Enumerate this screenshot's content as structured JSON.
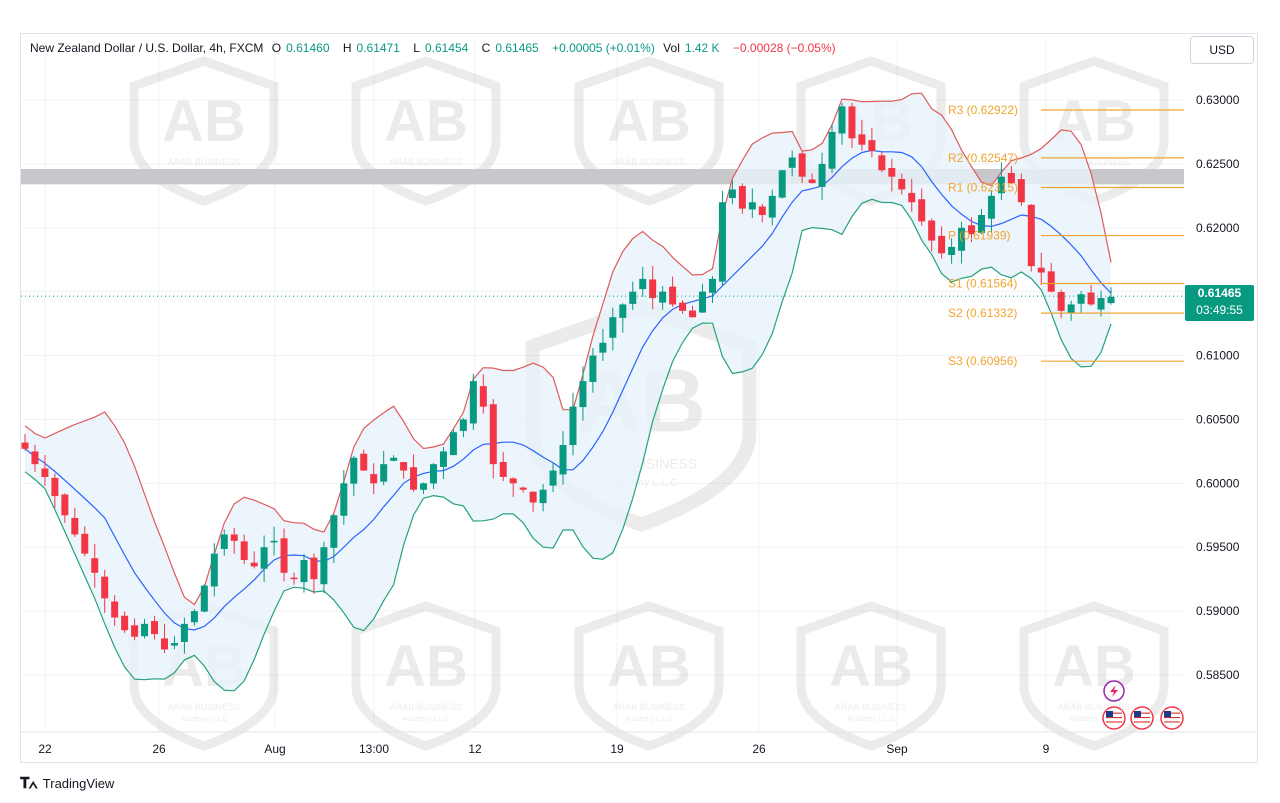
{
  "header": {
    "symbol": "New Zealand Dollar / U.S. Dollar, 4h, FXCM",
    "open_label": "O",
    "open": "0.61460",
    "high_label": "H",
    "high": "0.61471",
    "low_label": "L",
    "low": "0.61454",
    "close_label": "C",
    "close": "0.61465",
    "change": "+0.00005 (+0.01%)",
    "vol_label": "Vol",
    "vol": "1.42 K",
    "vol_change": "−0.00028 (−0.05%)"
  },
  "currency_button": "USD",
  "last_price": {
    "price": "0.61465",
    "countdown": "03:49:55"
  },
  "footer": {
    "brand": "TradingView"
  },
  "watermark": {
    "line1": "ARAB BUSINESS",
    "line2": "Academy L.L.C"
  },
  "colors": {
    "bull": "#089981",
    "bear": "#f23645",
    "band_upper": "#e05a5a",
    "band_lower": "#26a17b",
    "basis": "#2962ff",
    "band_fill": "#e8f3fb",
    "pivot": "#f0a530",
    "resistance_zone": "#c8c8cc"
  },
  "icons": [
    "lightning-icon",
    "us-flag-icon",
    "us-flag-icon",
    "us-flag-icon"
  ],
  "chart_data": {
    "type": "candlestick",
    "timeframe": "4h",
    "y_axis": {
      "range": [
        0.58,
        0.6315
      ],
      "ticks": [
        "0.63000",
        "0.62500",
        "0.62000",
        "0.61500",
        "0.61000",
        "0.60500",
        "0.60000",
        "0.59500",
        "0.59000",
        "0.58500"
      ]
    },
    "x_axis": {
      "ticks": [
        "22",
        "26",
        "Aug",
        "13:00",
        "12",
        "19",
        "26",
        "Sep",
        "9"
      ]
    },
    "pivot_levels": [
      {
        "label": "R3 (0.62922)",
        "value": 0.62922
      },
      {
        "label": "R2 (0.62547)",
        "value": 0.62547
      },
      {
        "label": "R1 (0.62315)",
        "value": 0.62315
      },
      {
        "label": "P (0.61939)",
        "value": 0.61939
      },
      {
        "label": "S1 (0.61564)",
        "value": 0.61564
      },
      {
        "label": "S2 (0.61332)",
        "value": 0.61332
      },
      {
        "label": "S3 (0.60956)",
        "value": 0.60956
      }
    ],
    "resistance_zone": [
      0.6234,
      0.6246
    ],
    "last_price": 0.61465,
    "path_close": [
      0.6027,
      0.6015,
      0.6005,
      0.599,
      0.5975,
      0.596,
      0.5945,
      0.593,
      0.591,
      0.5895,
      0.5885,
      0.588,
      0.589,
      0.5882,
      0.587,
      0.5875,
      0.589,
      0.59,
      0.592,
      0.5945,
      0.596,
      0.5955,
      0.594,
      0.5935,
      0.595,
      0.5955,
      0.593,
      0.5925,
      0.594,
      0.5925,
      0.595,
      0.5975,
      0.6,
      0.602,
      0.601,
      0.6,
      0.6015,
      0.602,
      0.601,
      0.5995,
      0.6,
      0.6015,
      0.6025,
      0.604,
      0.605,
      0.608,
      0.606,
      0.6015,
      0.6005,
      0.6,
      0.5995,
      0.5985,
      0.5995,
      0.601,
      0.603,
      0.606,
      0.608,
      0.61,
      0.611,
      0.613,
      0.614,
      0.615,
      0.616,
      0.6145,
      0.615,
      0.614,
      0.6135,
      0.613,
      0.615,
      0.616,
      0.622,
      0.623,
      0.6215,
      0.622,
      0.621,
      0.6225,
      0.6245,
      0.6255,
      0.624,
      0.6235,
      0.625,
      0.6275,
      0.6295,
      0.627,
      0.6265,
      0.626,
      0.6245,
      0.624,
      0.623,
      0.622,
      0.6205,
      0.619,
      0.618,
      0.6185,
      0.62,
      0.6195,
      0.621,
      0.6225,
      0.624,
      0.6235,
      0.622,
      0.617,
      0.6165,
      0.615,
      0.6135,
      0.614,
      0.6148,
      0.614,
      0.6145,
      0.6146
    ]
  }
}
